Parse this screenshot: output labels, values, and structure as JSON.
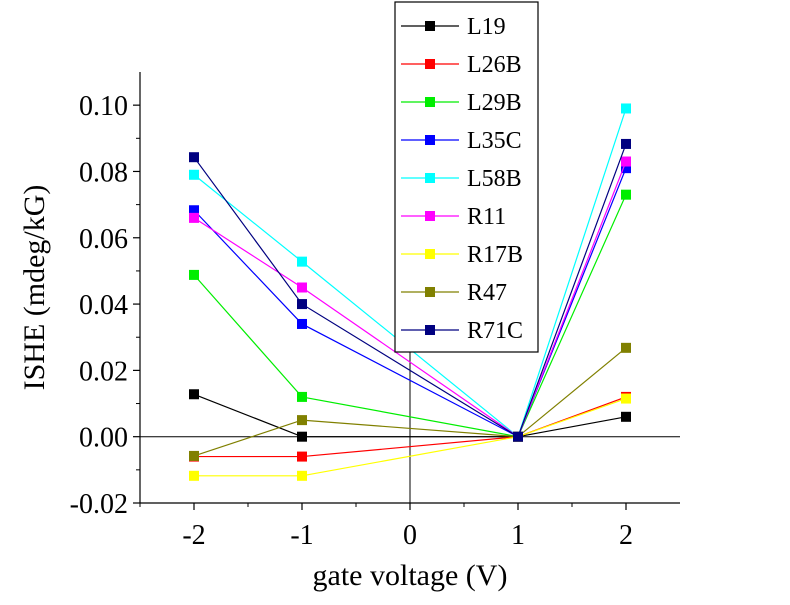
{
  "chart_data": {
    "type": "line",
    "title": "",
    "xlabel": "gate voltage (V)",
    "ylabel": "ISHE (mdeg/kG)",
    "xlim": [
      -2.5,
      2.5
    ],
    "ylim": [
      -0.02,
      0.11
    ],
    "x_ticks": [
      "-2",
      "-1",
      "0",
      "1",
      "2"
    ],
    "y_ticks": [
      "-0.02",
      "0.00",
      "0.02",
      "0.04",
      "0.06",
      "0.08",
      "0.10"
    ],
    "grid": false,
    "legend_position": "top-right",
    "zero_axes": true,
    "marker": "square",
    "series": [
      {
        "name": "L19",
        "color": "#000000",
        "x": [
          -2,
          -1,
          1,
          2
        ],
        "y": [
          0.0128,
          0.0,
          0.0,
          0.006
        ]
      },
      {
        "name": "L26B",
        "color": "#ff0000",
        "x": [
          -2,
          -1,
          1,
          2
        ],
        "y": [
          -0.006,
          -0.006,
          0.0,
          0.012
        ]
      },
      {
        "name": "L29B",
        "color": "#00ee00",
        "x": [
          -2,
          -1,
          1,
          2
        ],
        "y": [
          0.0488,
          0.012,
          0.0,
          0.073
        ]
      },
      {
        "name": "L35C",
        "color": "#0000ff",
        "x": [
          -2,
          -1,
          1,
          2
        ],
        "y": [
          0.0683,
          0.034,
          0.0,
          0.081
        ]
      },
      {
        "name": "L58B",
        "color": "#00ffff",
        "x": [
          -2,
          -1,
          1,
          2
        ],
        "y": [
          0.079,
          0.0528,
          0.0,
          0.099
        ]
      },
      {
        "name": "R11",
        "color": "#ff00ff",
        "x": [
          -2,
          -1,
          1,
          2
        ],
        "y": [
          0.066,
          0.045,
          0.0,
          0.083
        ]
      },
      {
        "name": "R17B",
        "color": "#ffff00",
        "x": [
          -2,
          -1,
          1,
          2
        ],
        "y": [
          -0.0118,
          -0.0118,
          0.0,
          0.0115
        ]
      },
      {
        "name": "R47",
        "color": "#808000",
        "x": [
          -2,
          -1,
          1,
          2
        ],
        "y": [
          -0.0058,
          0.005,
          0.0,
          0.0268
        ]
      },
      {
        "name": "R71C",
        "color": "#000080",
        "x": [
          -2,
          -1,
          1,
          2
        ],
        "y": [
          0.0843,
          0.04,
          0.0,
          0.0883
        ]
      }
    ]
  }
}
